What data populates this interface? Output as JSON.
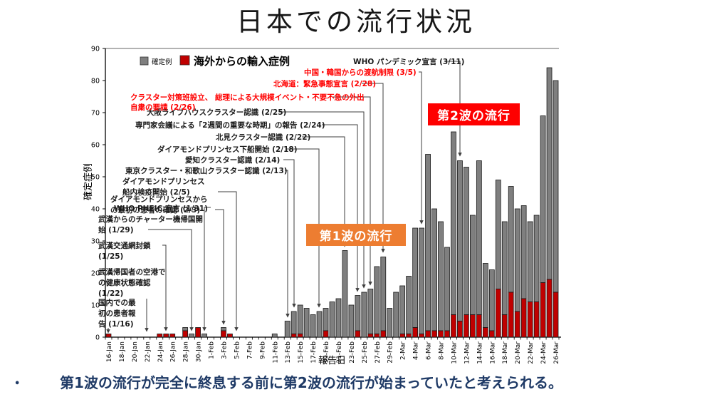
{
  "title": "日本での流行状況",
  "legend": {
    "confirmed_label": "確定例",
    "imported_label": "海外からの輸入症例"
  },
  "axes": {
    "y_label": "確定症例",
    "x_label": "報告日",
    "y_ticks": [
      0,
      10,
      20,
      30,
      40,
      50,
      60,
      70,
      80,
      90
    ]
  },
  "wave1_label": "第1波の流行",
  "wave2_label": "第2波の流行",
  "bullet": {
    "marker": "•",
    "text": "第1波の流行が完全に終息する前に第2波の流行が始まっていたと考えられる。"
  },
  "colors": {
    "bar_confirmed": "#7f7f7f",
    "bar_imported": "#c00000",
    "bar_border": "#1a1a1a",
    "wave1_box": "#ed7d31",
    "wave2_box": "#fe0000",
    "annotation_black": "#1a1a1a",
    "annotation_red": "#ff0000",
    "leader_line": "#3f3f3f",
    "bullet_text": "#1f3a66"
  },
  "chart_data": {
    "type": "bar",
    "stacked": true,
    "title": "",
    "xlabel": "報告日",
    "ylabel": "確定症例",
    "ylim": [
      0,
      90
    ],
    "grid": false,
    "legend_position": "top-left-inside",
    "x": [
      "16-Jan",
      "17-Jan",
      "18-Jan",
      "19-Jan",
      "20-Jan",
      "21-Jan",
      "22-Jan",
      "23-Jan",
      "24-Jan",
      "25-Jan",
      "26-Jan",
      "27-Jan",
      "28-Jan",
      "29-Jan",
      "30-Jan",
      "31-Jan",
      "1-Feb",
      "2-Feb",
      "3-Feb",
      "4-Feb",
      "5-Feb",
      "6-Feb",
      "7-Feb",
      "8-Feb",
      "9-Feb",
      "10-Feb",
      "11-Feb",
      "12-Feb",
      "13-Feb",
      "14-Feb",
      "15-Feb",
      "16-Feb",
      "17-Feb",
      "18-Feb",
      "19-Feb",
      "20-Feb",
      "21-Feb",
      "22-Feb",
      "23-Feb",
      "24-Feb",
      "25-Feb",
      "26-Feb",
      "27-Feb",
      "28-Feb",
      "29-Feb",
      "1-Mar",
      "2-Mar",
      "3-Mar",
      "4-Mar",
      "5-Mar",
      "6-Mar",
      "7-Mar",
      "8-Mar",
      "9-Mar",
      "10-Mar",
      "11-Mar",
      "12-Mar",
      "13-Mar",
      "14-Mar",
      "15-Mar",
      "16-Mar",
      "17-Mar",
      "18-Mar",
      "19-Mar",
      "20-Mar",
      "21-Mar",
      "22-Mar",
      "23-Mar",
      "24-Mar",
      "25-Mar",
      "26-Mar"
    ],
    "x_tick_labels_every": 2,
    "series": [
      {
        "name": "確定例",
        "role": "total_confirmed",
        "color": "#7f7f7f",
        "values": [
          1,
          0,
          0,
          0,
          0,
          0,
          0,
          0,
          1,
          1,
          1,
          0,
          3,
          1,
          3,
          1,
          0,
          0,
          3,
          1,
          0,
          0,
          0,
          0,
          0,
          0,
          1,
          0,
          5,
          8,
          10,
          9,
          7,
          8,
          9,
          11,
          12,
          27,
          10,
          13,
          14,
          15,
          22,
          25,
          9,
          14,
          16,
          19,
          34,
          34,
          57,
          40,
          36,
          28,
          64,
          55,
          53,
          38,
          55,
          23,
          21,
          49,
          36,
          47,
          40,
          41,
          36,
          38,
          69,
          84,
          80
        ]
      },
      {
        "name": "海外からの輸入症例",
        "role": "imported_part_of_total",
        "color": "#c00000",
        "values": [
          1,
          0,
          0,
          0,
          0,
          0,
          0,
          0,
          1,
          1,
          1,
          0,
          2,
          0,
          3,
          0,
          0,
          0,
          2,
          1,
          0,
          0,
          0,
          0,
          0,
          0,
          0,
          0,
          0,
          1,
          1,
          0,
          0,
          0,
          2,
          0,
          0,
          0,
          0,
          2,
          0,
          1,
          1,
          2,
          0,
          0,
          1,
          1,
          3,
          1,
          2,
          2,
          2,
          2,
          7,
          5,
          7,
          7,
          7,
          3,
          2,
          15,
          7,
          14,
          8,
          12,
          11,
          11,
          17,
          18,
          14
        ]
      }
    ],
    "annotations": [
      {
        "id": "first-domestic-case",
        "lines": [
          "国内での最",
          "初の患者報",
          "告 (1/16)"
        ],
        "color": "black",
        "target": "16-Jan"
      },
      {
        "id": "airport-health-check",
        "lines": [
          "武漢帰国者の空港で",
          "の健康状態確認",
          "(1/22)"
        ],
        "color": "black",
        "target": "22-Jan"
      },
      {
        "id": "wuhan-lockdown",
        "lines": [
          "武漢交通網封鎖",
          "(1/25)"
        ],
        "color": "black",
        "target": "25-Jan"
      },
      {
        "id": "charter-flights",
        "lines": [
          "武漢からのチャーター機帰国開",
          "始 (1/29)"
        ],
        "color": "black",
        "target": "29-Jan"
      },
      {
        "id": "who-pheic",
        "lines": [
          "WHO PHEIC 宣言  (1/31)"
        ],
        "color": "black",
        "target": "31-Jan"
      },
      {
        "id": "dp-first-case",
        "lines": [
          "ダイアモンドプリンセスから",
          "の最初の患者の確認 (2/3)"
        ],
        "color": "black",
        "target": "3-Feb"
      },
      {
        "id": "dp-quarantine",
        "lines": [
          "ダイアモンドプリンセス",
          "船内検疫開始 (2/5)"
        ],
        "color": "black",
        "target": "5-Feb"
      },
      {
        "id": "tokyo-wakayama-cluster",
        "lines": [
          "東京クラスター・和歌山クラスター認識  (2/13)"
        ],
        "color": "black",
        "target": "13-Feb"
      },
      {
        "id": "aichi-cluster",
        "lines": [
          "愛知クラスター認識  (2/14)"
        ],
        "color": "black",
        "target": "14-Feb"
      },
      {
        "id": "dp-disembark",
        "lines": [
          "ダイアモンドプリンセス下船開始  (2/18)"
        ],
        "color": "black",
        "target": "18-Feb"
      },
      {
        "id": "kitami-cluster",
        "lines": [
          "北見クラスター認識  (2/22)"
        ],
        "color": "black",
        "target": "22-Feb"
      },
      {
        "id": "expert-meeting",
        "lines": [
          "専門家会議による「2週間の重要な時期」の報告 (2/24)"
        ],
        "color": "black",
        "target": "24-Feb"
      },
      {
        "id": "osaka-livehouse-cluster",
        "lines": [
          "大阪ライブハウスクラスター認識  (2/25)"
        ],
        "color": "black",
        "target": "25-Feb"
      },
      {
        "id": "cluster-taskforce",
        "lines": [
          "クラスター対策班設立、 総理による大規模イベント・不要不急の外出",
          "自粛の要請 (2/26)"
        ],
        "color": "red",
        "target": "26-Feb"
      },
      {
        "id": "hokkaido-emergency",
        "lines": [
          "北海道：緊急事態宣言  (2/28)"
        ],
        "color": "red",
        "target": "28-Feb"
      },
      {
        "id": "travel-restrictions",
        "lines": [
          "中国・韓国からの渡航制限  (3/5)"
        ],
        "color": "red",
        "target": "5-Mar"
      },
      {
        "id": "who-pandemic",
        "lines": [
          "WHO パンデミック宣言 (3/11)"
        ],
        "color": "black",
        "target": "11-Mar"
      }
    ]
  }
}
